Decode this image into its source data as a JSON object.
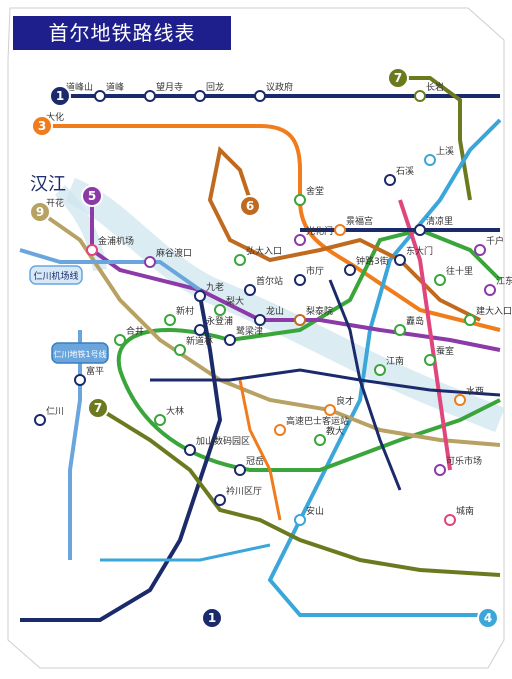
{
  "title": "首尔地铁路线表",
  "river_label": "汉江",
  "colors": {
    "line1": "#1b2a6b",
    "line2": "#3aa53a",
    "line3": "#f07c1c",
    "line4": "#3aa6d9",
    "line5": "#8b3aa8",
    "line6": "#c06a20",
    "line7": "#6b7a1e",
    "line8": "#e0457b",
    "line9": "#b7a163",
    "airport": "#6aa6dd",
    "river": "#cfe6ef"
  },
  "line_badges": [
    {
      "number": "1",
      "color": "#1b2a6b"
    },
    {
      "number": "7",
      "color": "#6b7a1e"
    },
    {
      "number": "3",
      "color": "#f07c1c"
    },
    {
      "number": "5",
      "color": "#8b3aa8"
    },
    {
      "number": "9",
      "color": "#b7a163"
    },
    {
      "number": "6",
      "color": "#c06a20"
    },
    {
      "number": "7",
      "color": "#6b7a1e"
    },
    {
      "number": "1",
      "color": "#1b2a6b"
    },
    {
      "number": "4",
      "color": "#3aa6d9"
    }
  ],
  "legend_boxes": [
    {
      "label": "仁川机场线"
    },
    {
      "label": "仁川地铁1号线"
    }
  ],
  "stations": [
    {
      "name": "道峰山",
      "color": "#1b2a6b"
    },
    {
      "name": "道峰",
      "color": "#1b2a6b"
    },
    {
      "name": "望月寺",
      "color": "#1b2a6b"
    },
    {
      "name": "回龙",
      "color": "#1b2a6b"
    },
    {
      "name": "议政府",
      "color": "#1b2a6b"
    },
    {
      "name": "长岩",
      "color": "#6b7a1e"
    },
    {
      "name": "大化",
      "color": "#f07c1c"
    },
    {
      "name": "舍堂",
      "color": "#3aa53a"
    },
    {
      "name": "弘大入口",
      "color": "#3aa53a"
    },
    {
      "name": "金浦机场",
      "color": "#e0457b"
    },
    {
      "name": "开花",
      "color": "#b7a163"
    },
    {
      "name": "麻谷渡口",
      "color": "#8b3aa8"
    },
    {
      "name": "九老",
      "color": "#1b2a6b"
    },
    {
      "name": "永登浦",
      "color": "#1b2a6b"
    },
    {
      "name": "新道林",
      "color": "#3aa53a"
    },
    {
      "name": "鹭梁津",
      "color": "#1b2a6b"
    },
    {
      "name": "龙山",
      "color": "#1b2a6b"
    },
    {
      "name": "首尔站",
      "color": "#1b2a6b"
    },
    {
      "name": "市厅",
      "color": "#1b2a6b"
    },
    {
      "name": "钟路3街",
      "color": "#1b2a6b"
    },
    {
      "name": "东大门",
      "color": "#1b2a6b"
    },
    {
      "name": "往十里",
      "color": "#3aa53a"
    },
    {
      "name": "建大入口",
      "color": "#3aa53a"
    },
    {
      "name": "蚕室",
      "color": "#3aa53a"
    },
    {
      "name": "江南",
      "color": "#3aa53a"
    },
    {
      "name": "良才",
      "color": "#f07c1c"
    },
    {
      "name": "教大",
      "color": "#3aa53a"
    },
    {
      "name": "高速巴士客运站",
      "color": "#f07c1c"
    },
    {
      "name": "梨泰院",
      "color": "#c06a20"
    },
    {
      "name": "合井",
      "color": "#3aa53a"
    },
    {
      "name": "新村",
      "color": "#3aa53a"
    },
    {
      "name": "梨大",
      "color": "#3aa53a"
    },
    {
      "name": "光化门",
      "color": "#8b3aa8"
    },
    {
      "name": "景福宫",
      "color": "#f07c1c"
    },
    {
      "name": "仁川",
      "color": "#1b2a6b"
    },
    {
      "name": "富平",
      "color": "#1b2a6b"
    },
    {
      "name": "安山",
      "color": "#3aa6d9"
    },
    {
      "name": "冠岳",
      "color": "#1b2a6b"
    },
    {
      "name": "衿川区厅",
      "color": "#1b2a6b"
    },
    {
      "name": "大林",
      "color": "#3aa53a"
    },
    {
      "name": "加山数码园区",
      "color": "#1b2a6b"
    },
    {
      "name": "上溪",
      "color": "#3aa6d9"
    },
    {
      "name": "水西",
      "color": "#f07c1c"
    },
    {
      "name": "可乐市场",
      "color": "#8b3aa8"
    },
    {
      "name": "城南",
      "color": "#e0457b"
    },
    {
      "name": "纛岛",
      "color": "#3aa53a"
    },
    {
      "name": "清凉里",
      "color": "#1b2a6b"
    },
    {
      "name": "石溪",
      "color": "#1b2a6b"
    },
    {
      "name": "千户",
      "color": "#8b3aa8"
    },
    {
      "name": "江东",
      "color": "#8b3aa8"
    }
  ]
}
